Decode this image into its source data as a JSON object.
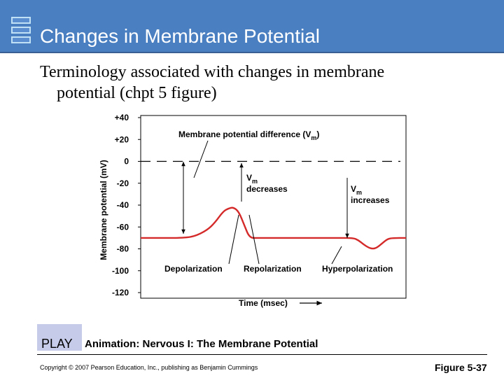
{
  "header": {
    "title": "Changes in Membrane Potential",
    "subtitle_line1": "Terminology associated with changes in membrane",
    "subtitle_line2": "potential (chpt 5 figure)"
  },
  "chart_data": {
    "type": "line",
    "title": "",
    "xlabel": "Time (msec)",
    "ylabel": "Membrane potential (mV)",
    "ylim": [
      -120,
      40
    ],
    "yticks": [
      40,
      20,
      0,
      -20,
      -40,
      -60,
      -80,
      -100,
      -120
    ],
    "ytick_labels": [
      "+40",
      "+20",
      "0",
      "-20",
      "-40",
      "-60",
      "-80",
      "-100",
      "-120"
    ],
    "grid": false,
    "series": [
      {
        "color": "#d42a2a",
        "x": [
          0,
          5,
          10,
          15,
          20,
          25,
          28,
          31,
          33,
          35,
          37,
          39,
          41,
          44,
          47,
          50,
          55,
          60,
          65,
          70,
          75,
          80,
          82,
          84,
          86,
          87.5,
          89,
          91,
          93,
          95,
          100
        ],
        "values": [
          -70,
          -70,
          -70,
          -70,
          -69,
          -63,
          -56,
          -46,
          -43,
          -42,
          -46,
          -58,
          -70,
          -70,
          -70,
          -70,
          -70,
          -70,
          -70,
          -70,
          -70,
          -70,
          -72,
          -76,
          -79,
          -80,
          -79,
          -75,
          -71,
          -70,
          -70
        ]
      }
    ],
    "reference_line": {
      "value": 0,
      "style": "dashed"
    },
    "annotations": {
      "membrane_potential_difference": "Membrane potential difference (V",
      "membrane_potential_difference_sub": "m",
      "membrane_potential_difference_close": ")",
      "vm_decreases_v": "V",
      "vm_decreases_sub": "m",
      "vm_decreases_text": "decreases",
      "vm_increases_v": "V",
      "vm_increases_sub": "m",
      "vm_increases_text": "increases",
      "depolarization": "Depolarization",
      "repolarization": "Repolarization",
      "hyperpolarization": "Hyperpolarization"
    }
  },
  "footer": {
    "play_label": "PLAY",
    "animation_label": "Animation: Nervous I: The Membrane Potential",
    "copyright": "Copyright © 2007 Pearson Education, Inc., publishing as Benjamin Cummings",
    "figure_label": "Figure 5-37"
  },
  "colors": {
    "title_bar": "#4a7fc1",
    "play_box": "#c6cbea",
    "trace": "#d42a2a"
  }
}
